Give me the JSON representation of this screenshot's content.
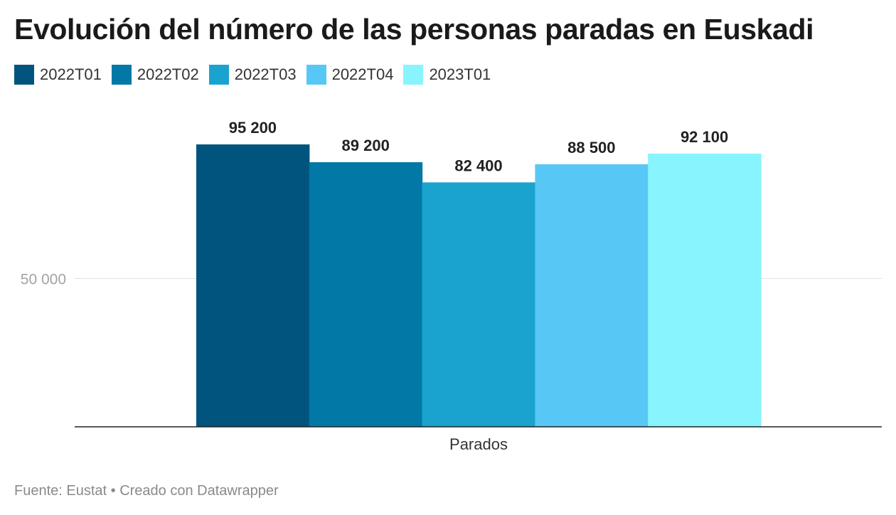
{
  "chart_data": {
    "type": "bar",
    "title": "Evolución del número de las personas paradas en Euskadi",
    "categories": [
      "Parados"
    ],
    "series": [
      {
        "name": "2022T01",
        "values": [
          95200
        ],
        "label": "95 200",
        "color": "#01547d"
      },
      {
        "name": "2022T02",
        "values": [
          89200
        ],
        "label": "89 200",
        "color": "#0178a6"
      },
      {
        "name": "2022T03",
        "values": [
          82400
        ],
        "label": "82 400",
        "color": "#1ba3cf"
      },
      {
        "name": "2022T04",
        "values": [
          88500
        ],
        "label": "88 500",
        "color": "#57c8f5"
      },
      {
        "name": "2023T01",
        "values": [
          92100
        ],
        "label": "92 100",
        "color": "#88f4fd"
      }
    ],
    "ylim": [
      0,
      100000
    ],
    "yticks": [
      {
        "value": 50000,
        "label": "50 000"
      }
    ],
    "xlabel": "Parados",
    "ylabel": "",
    "grid": true,
    "legend_position": "top-left"
  },
  "footer": {
    "source": "Fuente: Eustat • Creado con Datawrapper"
  }
}
